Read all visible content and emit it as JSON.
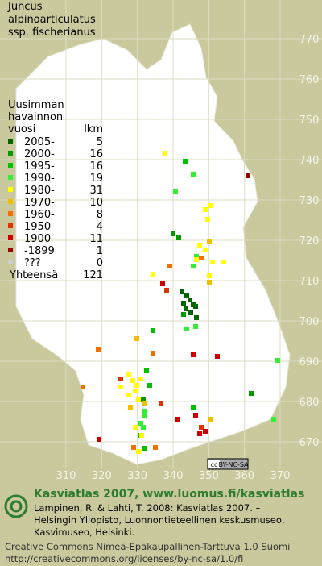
{
  "title": [
    "Juncus",
    "alpinoarticulatus",
    "ssp. fischerianus"
  ],
  "legend": {
    "header": [
      "Uusimman",
      "havainnon"
    ],
    "year_heading": "vuosi",
    "count_heading": "lkm",
    "rows": [
      {
        "label": "2005-",
        "count": 5,
        "color": "#006600"
      },
      {
        "label": "2000-",
        "count": 16,
        "color": "#009900"
      },
      {
        "label": "1995-",
        "count": 16,
        "color": "#00c000"
      },
      {
        "label": "1990-",
        "count": 19,
        "color": "#33ee33"
      },
      {
        "label": "1980-",
        "count": 31,
        "color": "#ffff00"
      },
      {
        "label": "1970-",
        "count": 10,
        "color": "#f0c000"
      },
      {
        "label": "1960-",
        "count": 8,
        "color": "#f07000"
      },
      {
        "label": "1950-",
        "count": 4,
        "color": "#dd3300"
      },
      {
        "label": "1900-",
        "count": 11,
        "color": "#cc0000"
      },
      {
        "label": "-1899",
        "count": 1,
        "color": "#990000"
      },
      {
        "label": "???",
        "count": 0,
        "color": "#cccccc"
      }
    ],
    "total_label": "Yhteensä",
    "total": 121
  },
  "grid": {
    "x_ticks": [
      310,
      320,
      330,
      340,
      350,
      360,
      370
    ],
    "y_ticks": [
      670,
      680,
      690,
      700,
      710,
      720,
      730,
      740,
      750,
      760,
      770
    ]
  },
  "license_badge": {
    "cc": "cc",
    "text": "BY-NC-SA"
  },
  "footer": {
    "heading": "Kasviatlas 2007, www.luomus.fi/kasviatlas",
    "citation": [
      "Lampinen, R. & Lahti, T. 2008: Kasviatlas 2007. –",
      "Helsingin Yliopisto, Luonnontieteellinen keskusmuseo,",
      "Kasvimuseo, Helsinki."
    ],
    "license": [
      "Creative Commons Nimeä-Epäkaupallinen-Tarttuva 1.0 Suomi",
      "http://creativecommons.org/licenses/by-nc-sa/1.0/fi"
    ]
  }
}
